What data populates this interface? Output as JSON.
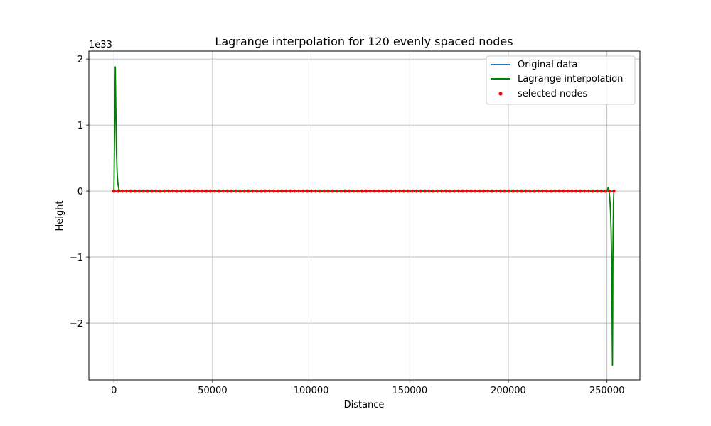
{
  "chart_data": {
    "type": "line",
    "title": "Lagrange interpolation for 120 evenly spaced nodes",
    "xlabel": "Distance",
    "ylabel": "Height",
    "y_offset_label": "1e33",
    "xlim": [
      -12700,
      266700
    ],
    "ylim": [
      -2.86,
      2.12
    ],
    "y_scale_exponent": 33,
    "x_ticks": [
      0,
      50000,
      100000,
      150000,
      200000,
      250000
    ],
    "x_tick_labels": [
      "0",
      "50000",
      "100000",
      "150000",
      "200000",
      "250000"
    ],
    "y_ticks": [
      -2,
      -1,
      0,
      1,
      2
    ],
    "y_tick_labels": [
      "−2",
      "−1",
      "0",
      "1",
      "2"
    ],
    "grid": true,
    "legend_position": "top-right",
    "series": [
      {
        "name": "Original data",
        "kind": "line",
        "color": "#1f77b4",
        "x": [
          0,
          253000
        ],
        "y": [
          0,
          0
        ]
      },
      {
        "name": "Lagrange interpolation",
        "kind": "line",
        "color": "#008000",
        "x": [
          0,
          700,
          1000,
          1300,
          1600,
          2000,
          2500,
          3000,
          5000,
          248000,
          250000,
          250600,
          251000,
          251400,
          251800,
          252100,
          252400,
          252600,
          252700,
          252800,
          252900,
          253000,
          253300,
          253500
        ],
        "y": [
          0,
          1.88,
          1.2,
          0.6,
          0.3,
          0.12,
          0.03,
          0,
          0,
          0,
          0,
          0.05,
          0.02,
          -0.1,
          -0.3,
          -0.6,
          -1.1,
          -1.8,
          -2.3,
          -2.64,
          -2.0,
          -1.0,
          -0.2,
          0
        ]
      },
      {
        "name": "selected nodes",
        "kind": "scatter",
        "color": "#ff0000",
        "count": 120,
        "x_start": 0,
        "x_end": 253500,
        "y": 0
      }
    ]
  }
}
